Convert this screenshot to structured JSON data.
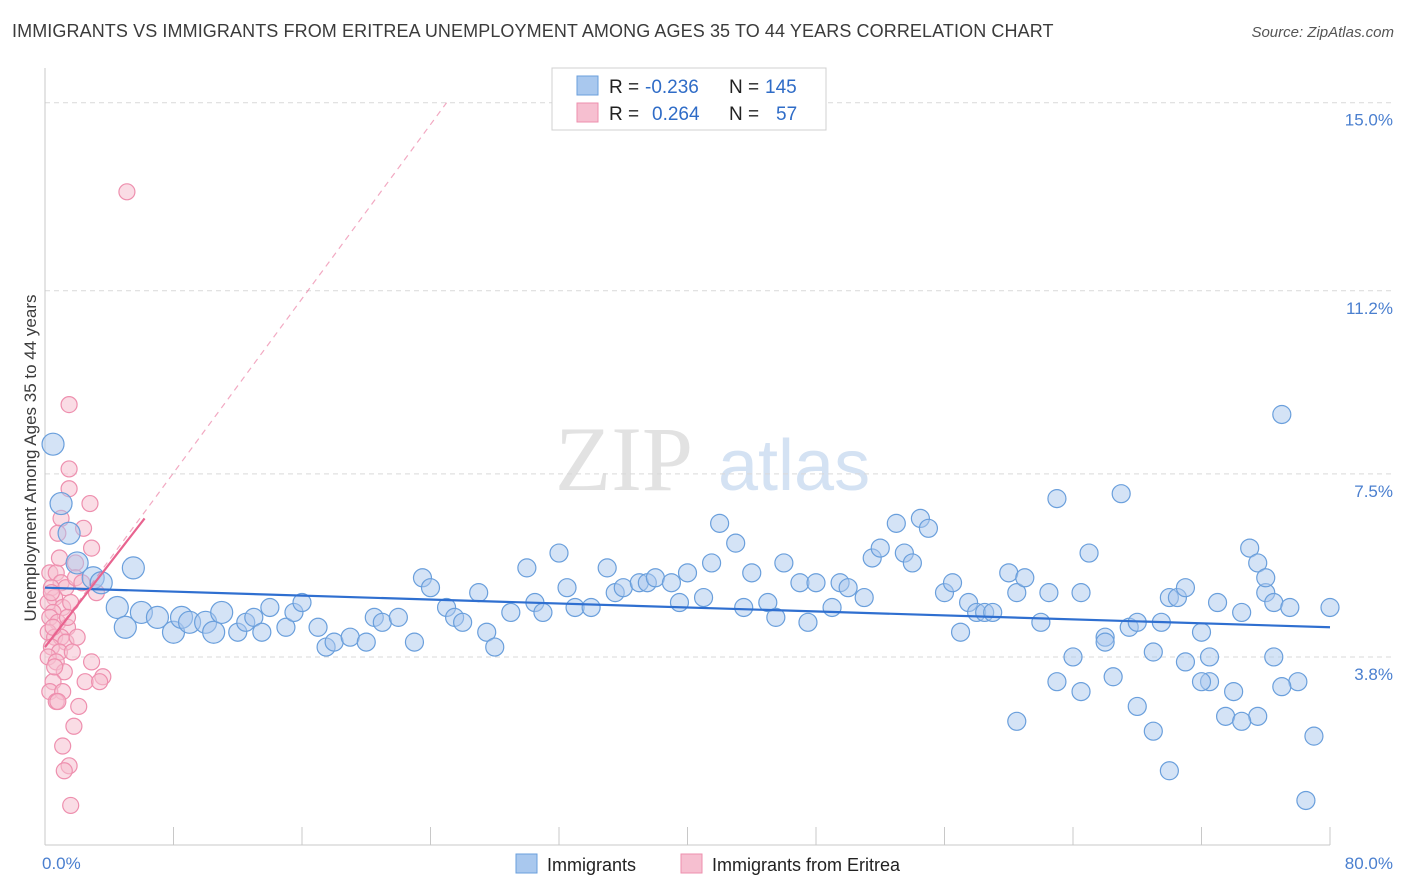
{
  "title": "IMMIGRANTS VS IMMIGRANTS FROM ERITREA UNEMPLOYMENT AMONG AGES 35 TO 44 YEARS CORRELATION CHART",
  "source": "Source: ZipAtlas.com",
  "watermark": {
    "zip": "ZIP",
    "atlas": "atlas"
  },
  "legend_top": [
    {
      "r_label": "R =",
      "r_value": "-0.236",
      "n_label": "N =",
      "n_value": "145"
    },
    {
      "r_label": "R =",
      "r_value": "0.264",
      "n_label": "N =",
      "n_value": "57"
    }
  ],
  "legend_bottom": [
    "Immigrants",
    "Immigrants from Eritrea"
  ],
  "colors": {
    "blue_fill": "#a9c8ee",
    "blue_stroke": "#6a9fdc",
    "blue_line": "#2f6fd0",
    "pink_fill": "#f6bfd0",
    "pink_stroke": "#ee8fae",
    "pink_line": "#e8638f",
    "grid": "#d9d9d9",
    "tick_text": "#4a7fcf"
  },
  "chart_data": {
    "type": "scatter",
    "title": "IMMIGRANTS VS IMMIGRANTS FROM ERITREA UNEMPLOYMENT AMONG AGES 35 TO 44 YEARS CORRELATION CHART",
    "xlabel": "",
    "ylabel": "Unemployment Among Ages 35 to 44 years",
    "xlim": [
      0,
      80
    ],
    "ylim": [
      0,
      15.5
    ],
    "x_tick_labels": [
      "0.0%",
      "80.0%"
    ],
    "y_ticks": [
      3.8,
      7.5,
      11.2,
      15.0
    ],
    "y_tick_labels": [
      "3.8%",
      "7.5%",
      "11.2%",
      "15.0%"
    ],
    "grid": "horizontal dashed",
    "legend_position": "top-center",
    "series": [
      {
        "name": "Immigrants",
        "r": -0.236,
        "n": 145,
        "trend": {
          "x": [
            0,
            80
          ],
          "y": [
            5.2,
            4.4
          ]
        },
        "points": [
          [
            0.5,
            8.1
          ],
          [
            1.0,
            6.9
          ],
          [
            1.5,
            6.3
          ],
          [
            2.0,
            5.7
          ],
          [
            3.0,
            5.4
          ],
          [
            3.5,
            5.3
          ],
          [
            4.5,
            4.8
          ],
          [
            5.0,
            4.4
          ],
          [
            5.5,
            5.6
          ],
          [
            6.0,
            4.7
          ],
          [
            7.0,
            4.6
          ],
          [
            8.0,
            4.3
          ],
          [
            8.5,
            4.6
          ],
          [
            9.0,
            4.5
          ],
          [
            10.0,
            4.5
          ],
          [
            10.5,
            4.3
          ],
          [
            11.0,
            4.7
          ],
          [
            12.0,
            4.3
          ],
          [
            12.5,
            4.5
          ],
          [
            13.0,
            4.6
          ],
          [
            13.5,
            4.3
          ],
          [
            14.0,
            4.8
          ],
          [
            15.0,
            4.4
          ],
          [
            15.5,
            4.7
          ],
          [
            16.0,
            4.9
          ],
          [
            17.0,
            4.4
          ],
          [
            17.5,
            4.0
          ],
          [
            18.0,
            4.1
          ],
          [
            19.0,
            4.2
          ],
          [
            20.0,
            4.1
          ],
          [
            20.5,
            4.6
          ],
          [
            21.0,
            4.5
          ],
          [
            22.0,
            4.6
          ],
          [
            23.0,
            4.1
          ],
          [
            23.5,
            5.4
          ],
          [
            24.0,
            5.2
          ],
          [
            25.0,
            4.8
          ],
          [
            25.5,
            4.6
          ],
          [
            26.0,
            4.5
          ],
          [
            27.0,
            5.1
          ],
          [
            27.5,
            4.3
          ],
          [
            28.0,
            4.0
          ],
          [
            29.0,
            4.7
          ],
          [
            30.0,
            5.6
          ],
          [
            30.5,
            4.9
          ],
          [
            31.0,
            4.7
          ],
          [
            32.0,
            5.9
          ],
          [
            32.5,
            5.2
          ],
          [
            33.0,
            4.8
          ],
          [
            34.0,
            4.8
          ],
          [
            35.0,
            5.6
          ],
          [
            35.5,
            5.1
          ],
          [
            36.0,
            5.2
          ],
          [
            37.0,
            5.3
          ],
          [
            37.5,
            5.3
          ],
          [
            38.0,
            5.4
          ],
          [
            39.0,
            5.3
          ],
          [
            39.5,
            4.9
          ],
          [
            40.0,
            5.5
          ],
          [
            41.0,
            5.0
          ],
          [
            41.5,
            5.7
          ],
          [
            42.0,
            6.5
          ],
          [
            43.0,
            6.1
          ],
          [
            43.5,
            4.8
          ],
          [
            44.0,
            5.5
          ],
          [
            45.0,
            4.9
          ],
          [
            45.5,
            4.6
          ],
          [
            46.0,
            5.7
          ],
          [
            47.0,
            5.3
          ],
          [
            47.5,
            4.5
          ],
          [
            48.0,
            5.3
          ],
          [
            49.0,
            4.8
          ],
          [
            49.5,
            5.3
          ],
          [
            50.0,
            5.2
          ],
          [
            51.0,
            5.0
          ],
          [
            51.5,
            5.8
          ],
          [
            52.0,
            6.0
          ],
          [
            53.0,
            6.5
          ],
          [
            53.5,
            5.9
          ],
          [
            54.0,
            5.7
          ],
          [
            54.5,
            6.6
          ],
          [
            55.0,
            6.4
          ],
          [
            56.0,
            5.1
          ],
          [
            56.5,
            5.3
          ],
          [
            57.0,
            4.3
          ],
          [
            57.5,
            4.9
          ],
          [
            58.0,
            4.7
          ],
          [
            58.5,
            4.7
          ],
          [
            59.0,
            4.7
          ],
          [
            60.0,
            5.5
          ],
          [
            60.5,
            5.1
          ],
          [
            61.0,
            5.4
          ],
          [
            62.0,
            4.5
          ],
          [
            62.5,
            5.1
          ],
          [
            63.0,
            7.0
          ],
          [
            64.0,
            3.8
          ],
          [
            64.5,
            5.1
          ],
          [
            65.0,
            5.9
          ],
          [
            66.0,
            4.2
          ],
          [
            66.5,
            3.4
          ],
          [
            67.0,
            7.1
          ],
          [
            67.5,
            4.4
          ],
          [
            68.0,
            4.5
          ],
          [
            69.0,
            3.9
          ],
          [
            69.5,
            4.5
          ],
          [
            70.0,
            5.0
          ],
          [
            70.5,
            5.0
          ],
          [
            71.0,
            5.2
          ],
          [
            72.0,
            4.3
          ],
          [
            72.5,
            3.3
          ],
          [
            73.0,
            4.9
          ],
          [
            74.0,
            3.1
          ],
          [
            74.5,
            4.7
          ],
          [
            75.0,
            6.0
          ],
          [
            75.5,
            2.6
          ],
          [
            76.0,
            5.1
          ],
          [
            76.5,
            4.9
          ],
          [
            77.0,
            8.7
          ],
          [
            78.0,
            3.3
          ],
          [
            79.0,
            2.2
          ],
          [
            60.5,
            2.5
          ],
          [
            63.0,
            3.3
          ],
          [
            64.5,
            3.1
          ],
          [
            66.0,
            4.1
          ],
          [
            68.0,
            2.8
          ],
          [
            69.0,
            2.3
          ],
          [
            70.0,
            1.5
          ],
          [
            71.0,
            3.7
          ],
          [
            72.0,
            3.3
          ],
          [
            72.5,
            3.8
          ],
          [
            73.5,
            2.6
          ],
          [
            74.5,
            2.5
          ],
          [
            75.5,
            5.7
          ],
          [
            76.0,
            5.4
          ],
          [
            76.5,
            3.8
          ],
          [
            77.0,
            3.2
          ],
          [
            77.5,
            4.8
          ],
          [
            78.5,
            0.9
          ],
          [
            80.0,
            4.8
          ]
        ]
      },
      {
        "name": "Immigrants from Eritrea",
        "r": 0.264,
        "n": 57,
        "trend": {
          "x": [
            0,
            6.2
          ],
          "y": [
            4.0,
            6.6
          ]
        },
        "trend_extended": {
          "x": [
            0,
            25
          ],
          "y": [
            4.0,
            15.0
          ]
        },
        "points": [
          [
            5.1,
            13.2
          ],
          [
            1.5,
            8.9
          ],
          [
            1.5,
            7.6
          ],
          [
            1.5,
            7.2
          ],
          [
            2.8,
            6.9
          ],
          [
            1.0,
            6.6
          ],
          [
            2.4,
            6.4
          ],
          [
            0.8,
            6.3
          ],
          [
            2.9,
            6.0
          ],
          [
            1.9,
            5.7
          ],
          [
            0.3,
            5.5
          ],
          [
            0.7,
            5.5
          ],
          [
            1.0,
            5.3
          ],
          [
            0.4,
            5.2
          ],
          [
            1.3,
            5.2
          ],
          [
            0.6,
            5.0
          ],
          [
            0.2,
            4.9
          ],
          [
            1.1,
            4.8
          ],
          [
            0.5,
            4.7
          ],
          [
            0.3,
            4.6
          ],
          [
            0.8,
            4.5
          ],
          [
            1.4,
            4.4
          ],
          [
            0.2,
            4.3
          ],
          [
            0.6,
            4.2
          ],
          [
            1.0,
            4.2
          ],
          [
            1.3,
            4.1
          ],
          [
            0.4,
            4.0
          ],
          [
            0.9,
            3.9
          ],
          [
            1.7,
            3.9
          ],
          [
            0.2,
            3.8
          ],
          [
            0.7,
            3.7
          ],
          [
            2.9,
            3.7
          ],
          [
            1.2,
            3.5
          ],
          [
            3.6,
            3.4
          ],
          [
            0.5,
            3.3
          ],
          [
            2.5,
            3.3
          ],
          [
            3.4,
            3.3
          ],
          [
            0.3,
            3.1
          ],
          [
            1.1,
            3.1
          ],
          [
            0.7,
            2.9
          ],
          [
            2.1,
            2.8
          ],
          [
            1.8,
            2.4
          ],
          [
            1.1,
            2.0
          ],
          [
            1.5,
            1.6
          ],
          [
            1.2,
            1.5
          ],
          [
            1.6,
            0.8
          ],
          [
            0.4,
            5.1
          ],
          [
            1.6,
            4.9
          ],
          [
            0.9,
            5.8
          ],
          [
            0.5,
            4.4
          ],
          [
            1.9,
            5.4
          ],
          [
            2.3,
            5.3
          ],
          [
            0.6,
            3.6
          ],
          [
            1.4,
            4.6
          ],
          [
            3.2,
            5.1
          ],
          [
            0.8,
            2.9
          ],
          [
            2.0,
            4.2
          ]
        ]
      }
    ]
  }
}
